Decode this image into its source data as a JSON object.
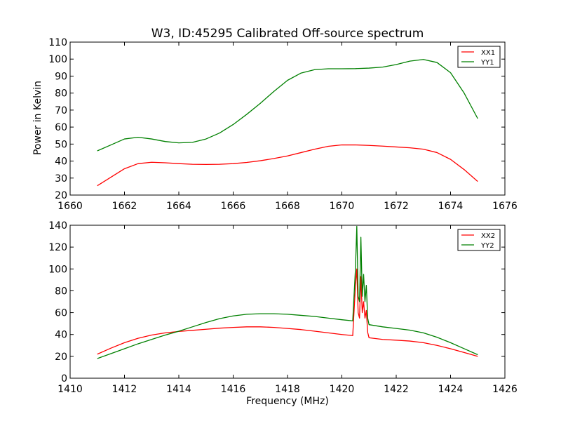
{
  "chart_data": [
    {
      "type": "line",
      "title": "W3, ID:45295 Calibrated Off-source spectrum",
      "xlabel": "",
      "ylabel": "Power in Kelvin",
      "xlim": [
        1660,
        1676
      ],
      "ylim": [
        20,
        110
      ],
      "xticks": [
        "1660",
        "1662",
        "1664",
        "1666",
        "1668",
        "1670",
        "1672",
        "1674",
        "1676"
      ],
      "yticks": [
        "20",
        "30",
        "40",
        "50",
        "60",
        "70",
        "80",
        "90",
        "100",
        "110"
      ],
      "legend": "top-right",
      "series": [
        {
          "name": "XX1",
          "color": "#ff0000",
          "x": [
            1661.0,
            1661.5,
            1662.0,
            1662.5,
            1663.0,
            1663.5,
            1664.0,
            1664.5,
            1665.0,
            1665.5,
            1666.0,
            1666.5,
            1667.0,
            1667.5,
            1668.0,
            1668.5,
            1669.0,
            1669.5,
            1670.0,
            1670.5,
            1671.0,
            1671.5,
            1672.0,
            1672.5,
            1673.0,
            1673.5,
            1674.0,
            1674.5,
            1675.0
          ],
          "y": [
            25.5,
            30.5,
            35.5,
            38.5,
            39.3,
            39.0,
            38.5,
            38.1,
            38.0,
            38.1,
            38.5,
            39.2,
            40.2,
            41.5,
            43.0,
            45.0,
            47.0,
            48.7,
            49.5,
            49.5,
            49.2,
            48.8,
            48.3,
            47.8,
            47.0,
            45.0,
            41.0,
            35.0,
            28.0
          ]
        },
        {
          "name": "YY1",
          "color": "#008000",
          "x": [
            1661.0,
            1661.5,
            1662.0,
            1662.5,
            1663.0,
            1663.5,
            1664.0,
            1664.5,
            1665.0,
            1665.5,
            1666.0,
            1666.5,
            1667.0,
            1667.5,
            1668.0,
            1668.5,
            1669.0,
            1669.5,
            1670.0,
            1670.5,
            1671.0,
            1671.5,
            1672.0,
            1672.5,
            1673.0,
            1673.5,
            1674.0,
            1674.5,
            1675.0
          ],
          "y": [
            46.0,
            49.5,
            53.0,
            54.0,
            53.0,
            51.5,
            50.7,
            51.0,
            53.0,
            56.5,
            61.5,
            67.5,
            74.0,
            81.0,
            87.5,
            91.8,
            93.8,
            94.3,
            94.3,
            94.4,
            94.7,
            95.3,
            96.8,
            98.8,
            99.8,
            98.0,
            92.0,
            80.0,
            65.0
          ]
        }
      ]
    },
    {
      "type": "line",
      "title": "",
      "xlabel": "Frequency (MHz)",
      "ylabel": "",
      "xlim": [
        1410,
        1426
      ],
      "ylim": [
        0,
        140
      ],
      "xticks": [
        "1410",
        "1412",
        "1414",
        "1416",
        "1418",
        "1420",
        "1422",
        "1424",
        "1426"
      ],
      "yticks": [
        "0",
        "20",
        "40",
        "60",
        "80",
        "100",
        "120",
        "140"
      ],
      "legend": "top-right",
      "series": [
        {
          "name": "XX2",
          "color": "#ff0000",
          "x": [
            1411.0,
            1411.5,
            1412.0,
            1412.5,
            1413.0,
            1413.5,
            1414.0,
            1414.5,
            1415.0,
            1415.5,
            1416.0,
            1416.5,
            1417.0,
            1417.5,
            1418.0,
            1418.5,
            1419.0,
            1419.5,
            1420.0,
            1420.4,
            1420.5,
            1420.55,
            1420.6,
            1420.65,
            1420.7,
            1420.75,
            1420.8,
            1420.85,
            1420.9,
            1420.95,
            1421.0,
            1421.5,
            1422.0,
            1422.5,
            1423.0,
            1423.5,
            1424.0,
            1424.5,
            1425.0
          ],
          "y": [
            22.0,
            27.5,
            32.5,
            36.5,
            39.5,
            41.5,
            42.8,
            43.8,
            44.8,
            45.8,
            46.5,
            47.0,
            47.0,
            46.5,
            45.5,
            44.5,
            43.0,
            41.5,
            40.0,
            39.0,
            85.0,
            100.0,
            60.0,
            55.0,
            93.0,
            60.0,
            70.0,
            55.0,
            62.0,
            42.0,
            37.0,
            35.5,
            34.8,
            34.0,
            32.5,
            30.0,
            27.0,
            23.5,
            20.0
          ]
        },
        {
          "name": "YY2",
          "color": "#008000",
          "x": [
            1411.0,
            1411.5,
            1412.0,
            1412.5,
            1413.0,
            1413.5,
            1414.0,
            1414.5,
            1415.0,
            1415.5,
            1416.0,
            1416.5,
            1417.0,
            1417.5,
            1418.0,
            1418.5,
            1419.0,
            1419.5,
            1420.0,
            1420.4,
            1420.5,
            1420.55,
            1420.6,
            1420.65,
            1420.7,
            1420.75,
            1420.8,
            1420.85,
            1420.9,
            1420.95,
            1421.0,
            1421.5,
            1422.0,
            1422.5,
            1423.0,
            1423.5,
            1424.0,
            1424.5,
            1425.0
          ],
          "y": [
            18.0,
            22.5,
            27.0,
            31.5,
            35.5,
            39.5,
            43.0,
            47.0,
            51.0,
            54.5,
            57.0,
            58.5,
            59.0,
            59.0,
            58.5,
            57.5,
            56.5,
            55.0,
            53.5,
            52.5,
            100.0,
            139.0,
            75.0,
            70.0,
            129.0,
            75.0,
            95.0,
            70.0,
            85.0,
            55.0,
            49.0,
            47.0,
            45.5,
            44.0,
            41.5,
            37.5,
            32.5,
            27.0,
            21.5
          ]
        }
      ]
    }
  ]
}
